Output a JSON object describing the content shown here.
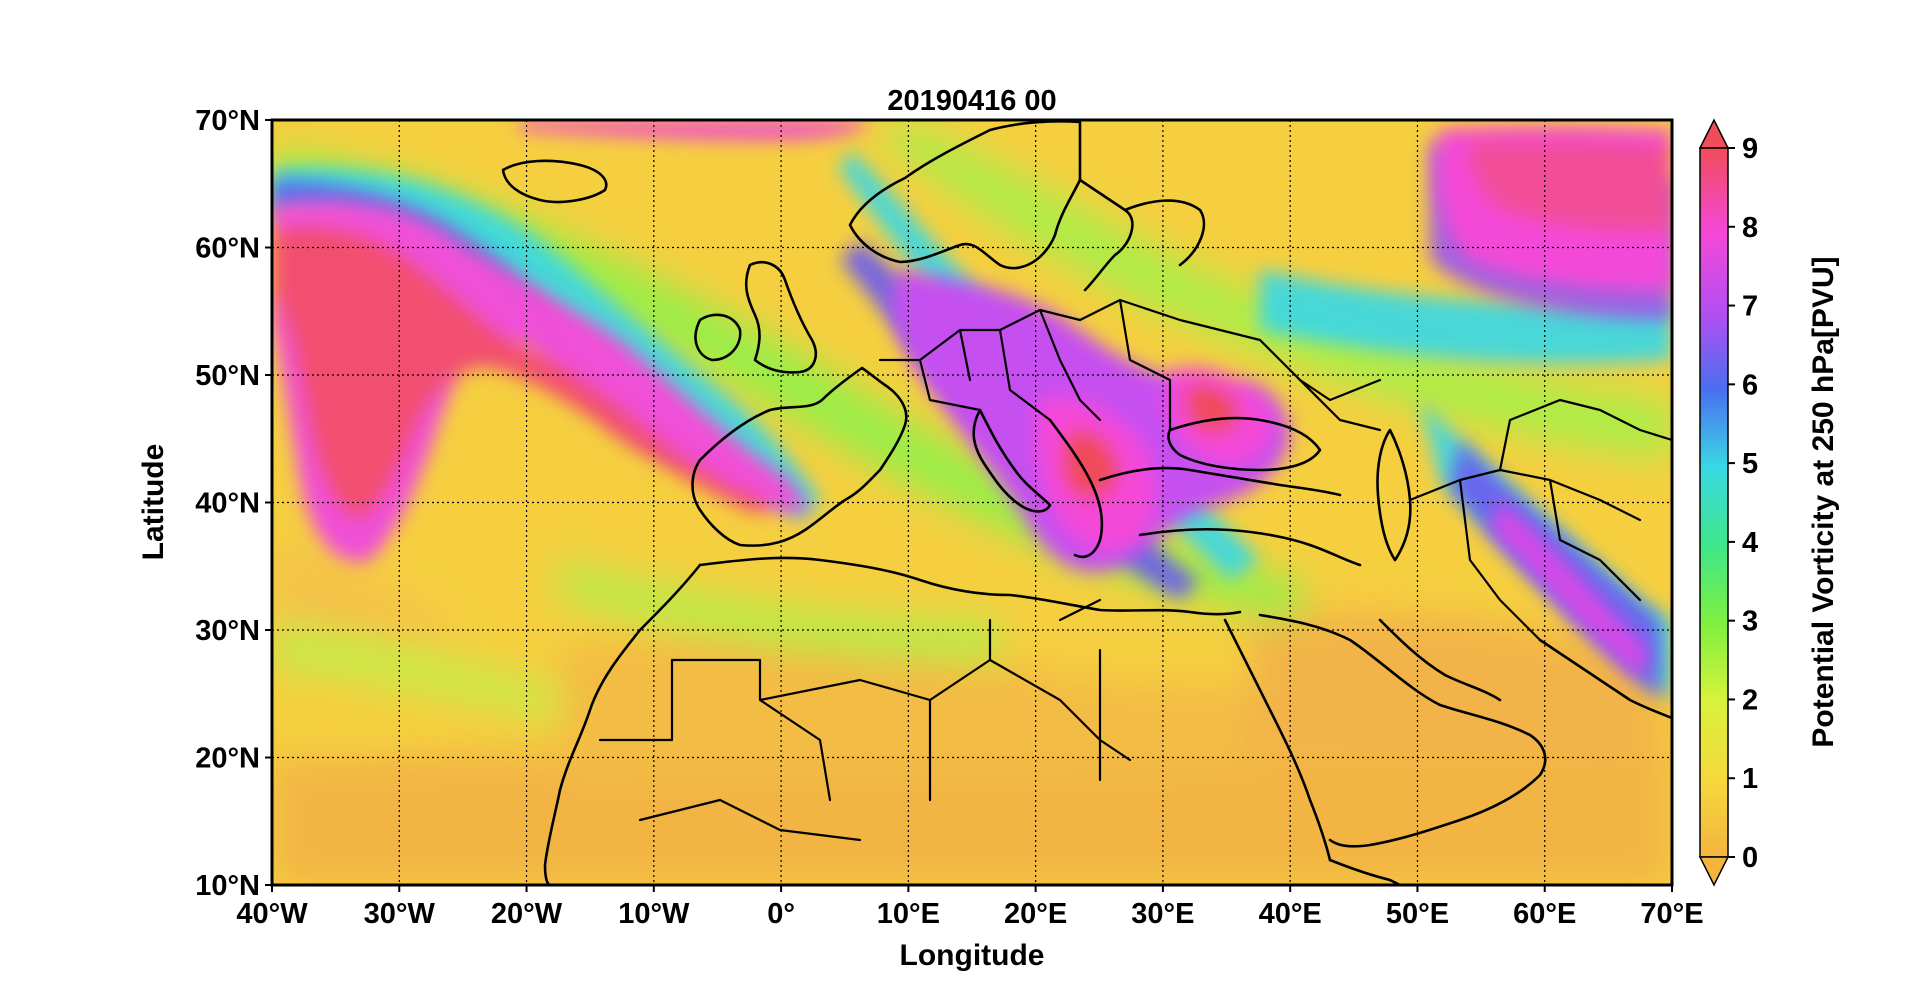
{
  "chart_data": {
    "type": "heatmap",
    "title": "20190416 00",
    "xlabel": "Longitude",
    "ylabel": "Latitude",
    "xlim": [
      -40,
      70
    ],
    "ylim": [
      10,
      70
    ],
    "grid": true,
    "x_ticks": [
      -40,
      -30,
      -20,
      -10,
      0,
      10,
      20,
      30,
      40,
      50,
      60,
      70
    ],
    "x_tick_labels": [
      "40°W",
      "30°W",
      "20°W",
      "10°W",
      "0°",
      "10°E",
      "20°E",
      "30°E",
      "40°E",
      "50°E",
      "60°E",
      "70°E"
    ],
    "y_ticks": [
      10,
      20,
      30,
      40,
      50,
      60,
      70
    ],
    "y_tick_labels": [
      "10°N",
      "20°N",
      "30°N",
      "40°N",
      "50°N",
      "60°N",
      "70°N"
    ],
    "colorbar": {
      "label": "Potential Vorticity at 250 hPa[PVU]",
      "range": [
        0,
        9
      ],
      "ticks": [
        0,
        1,
        2,
        3,
        4,
        5,
        6,
        7,
        8,
        9
      ],
      "tick_labels": [
        "0",
        "1",
        "2",
        "3",
        "4",
        "5",
        "6",
        "7",
        "8",
        "9"
      ],
      "extend": "both",
      "colors": [
        "#f4b43e",
        "#f6d93c",
        "#d8f23c",
        "#7ef040",
        "#3ee68a",
        "#3ad8e4",
        "#4a6ef0",
        "#b64ef0",
        "#f448d8",
        "#f04c5a"
      ]
    },
    "features": [
      {
        "name": "PV streamer over North Atlantic",
        "value_range": [
          7,
          9
        ]
      },
      {
        "name": "PV cut-off over Balkans and Turkey",
        "value_range": [
          6,
          9
        ]
      },
      {
        "name": "High PV over Siberia (northeast corner)",
        "value_range": [
          7,
          9
        ]
      },
      {
        "name": "Low PV over Sahara and Arabia",
        "value_range": [
          0,
          1
        ]
      }
    ]
  }
}
